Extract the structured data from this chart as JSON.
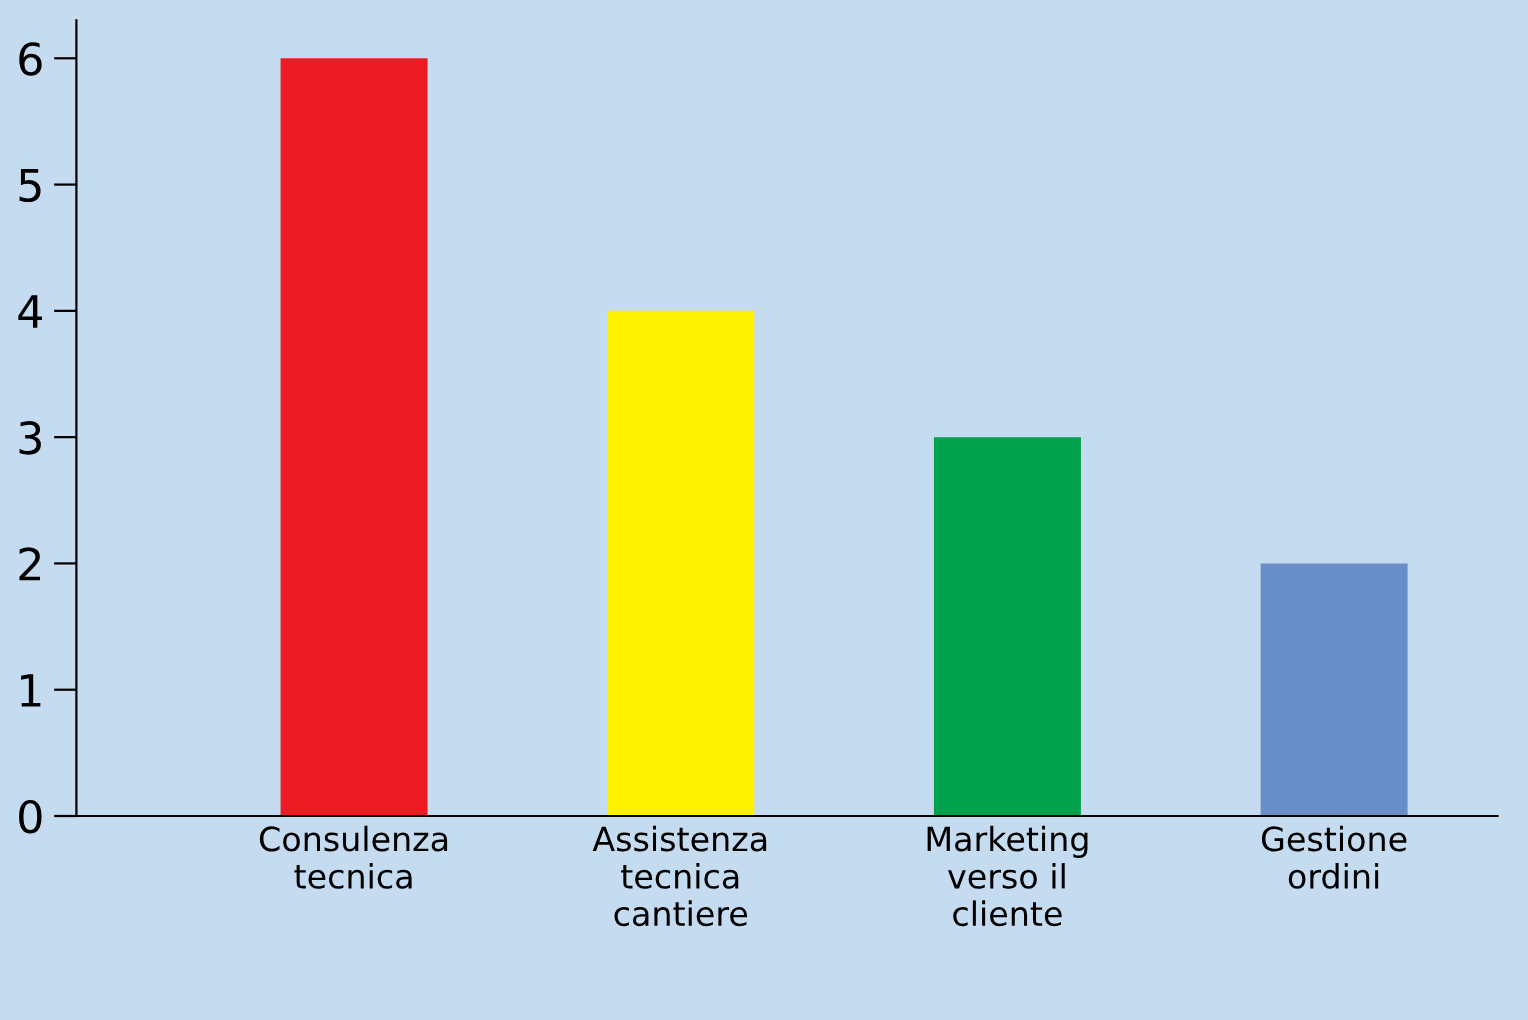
{
  "chart_data": {
    "type": "bar",
    "categories": [
      "Consulenza\ntecnica",
      "Assistenza\ntecnica\ncantiere",
      "Marketing\nverso il\ncliente",
      "Gestione\nordini"
    ],
    "values": [
      6,
      4,
      3,
      2
    ],
    "colors": [
      "#ed1c24",
      "#fff200",
      "#00a14b",
      "#6a8fc8"
    ],
    "ylim": [
      0,
      6.3
    ],
    "yticks": [
      0,
      1,
      2,
      3,
      4,
      5,
      6
    ],
    "grid": false,
    "legend": false
  }
}
